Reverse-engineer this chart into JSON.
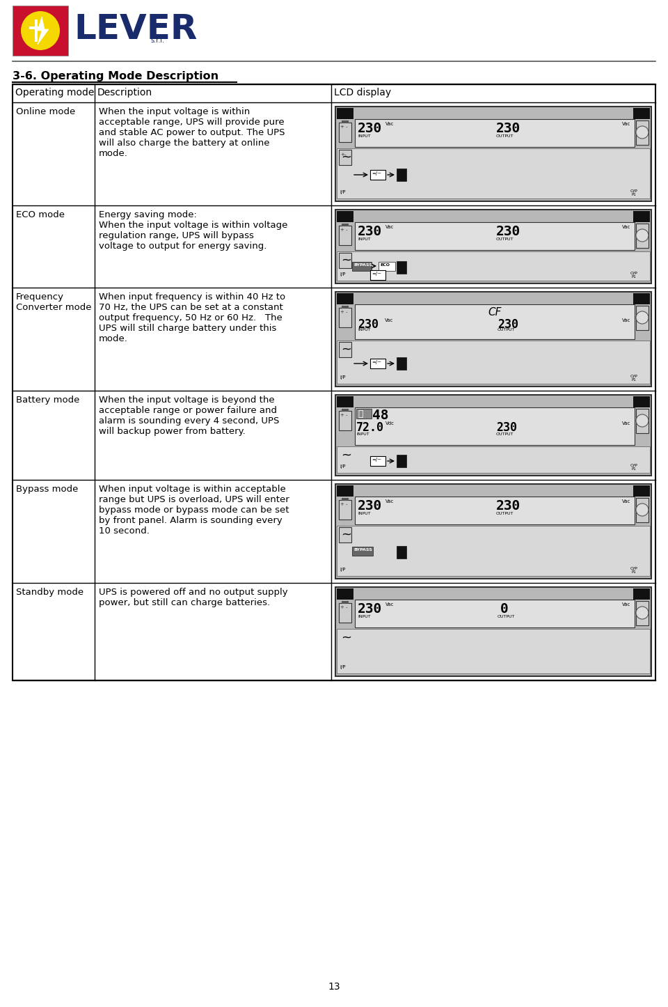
{
  "page_number": "13",
  "title": "3-6. Operating Mode Description",
  "col_headers": [
    "Operating mode",
    "Description",
    "LCD display"
  ],
  "rows": [
    {
      "mode": "Online mode",
      "description": "When the input voltage is within\nacceptable range, UPS will provide pure\nand stable AC power to output. The UPS\nwill also charge the battery at online\nmode.",
      "lcd_type": "online"
    },
    {
      "mode": "ECO mode",
      "description": "Energy saving mode:\nWhen the input voltage is within voltage\nregulation range, UPS will bypass\nvoltage to output for energy saving.",
      "lcd_type": "eco"
    },
    {
      "mode": "Frequency\nConverter mode",
      "description": "When input frequency is within 40 Hz to\n70 Hz, the UPS can be set at a constant\noutput frequency, 50 Hz or 60 Hz.   The\nUPS will still charge battery under this\nmode.",
      "lcd_type": "frequency"
    },
    {
      "mode": "Battery mode",
      "description": "When the input voltage is beyond the\nacceptable range or power failure and\nalarm is sounding every 4 second, UPS\nwill backup power from battery.",
      "lcd_type": "battery"
    },
    {
      "mode": "Bypass mode",
      "description": "When input voltage is within acceptable\nrange but UPS is overload, UPS will enter\nbypass mode or bypass mode can be set\nby front panel. Alarm is sounding every\n10 second.",
      "lcd_type": "bypass"
    },
    {
      "mode": "Standby mode",
      "description": "UPS is powered off and no output supply\npower, but still can charge batteries.",
      "lcd_type": "standby"
    }
  ],
  "background": "#ffffff",
  "text_color": "#000000",
  "logo_red": "#c8102e",
  "logo_yellow": "#f5d800",
  "logo_navy": "#1a2b6b"
}
